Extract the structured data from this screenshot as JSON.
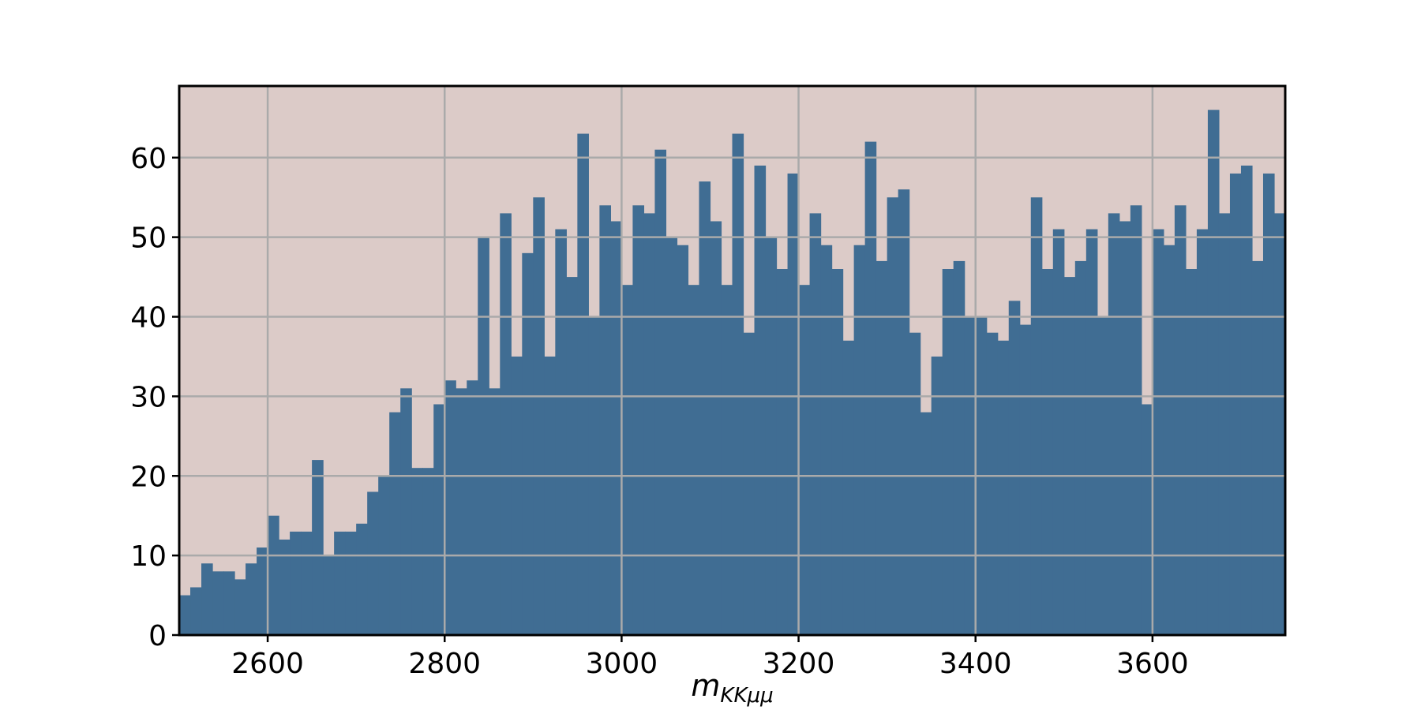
{
  "chart_data": {
    "type": "bar",
    "histogram": true,
    "bin_start": 2500,
    "bin_width": 12.5,
    "values": [
      5,
      6,
      9,
      8,
      8,
      7,
      9,
      11,
      15,
      12,
      13,
      13,
      22,
      10,
      13,
      13,
      14,
      18,
      20,
      28,
      31,
      21,
      21,
      29,
      32,
      31,
      32,
      50,
      31,
      53,
      35,
      48,
      55,
      35,
      51,
      45,
      63,
      40,
      54,
      52,
      44,
      54,
      53,
      61,
      50,
      49,
      44,
      57,
      52,
      44,
      63,
      38,
      59,
      50,
      46,
      58,
      44,
      53,
      49,
      46,
      37,
      49,
      62,
      47,
      55,
      56,
      38,
      28,
      35,
      46,
      47,
      40,
      40,
      38,
      37,
      42,
      39,
      55,
      46,
      51,
      45,
      47,
      51,
      40,
      53,
      52,
      54,
      29,
      51,
      49,
      54,
      46,
      51,
      66,
      53,
      58,
      59,
      47,
      58,
      53
    ],
    "xlim": [
      2500,
      3750
    ],
    "ylim": [
      0,
      69
    ],
    "xticks": [
      2600,
      2800,
      3000,
      3200,
      3400,
      3600
    ],
    "yticks": [
      0,
      10,
      20,
      30,
      40,
      50,
      60
    ],
    "xlabel": {
      "main": "m",
      "sub": "KKμμ"
    },
    "ylabel": "",
    "title": "",
    "grid": true,
    "colors": {
      "bar": "#406d93",
      "background": "#dccbc8",
      "grid": "#aaaaaa",
      "frame": "#000000"
    }
  }
}
